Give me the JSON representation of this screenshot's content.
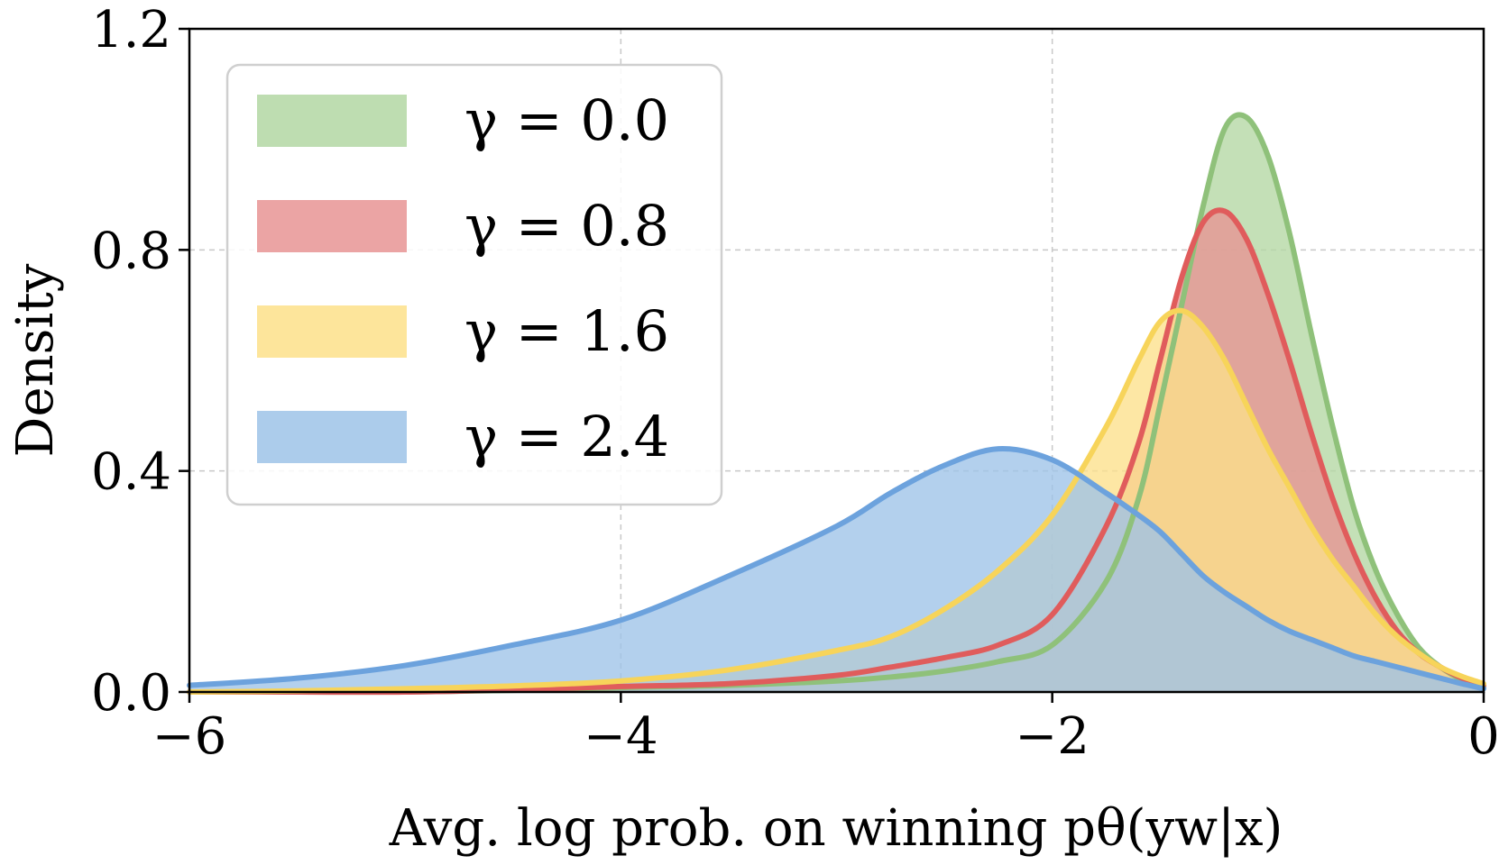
{
  "chart_data": {
    "type": "area",
    "title": "",
    "xlabel": "Avg. log prob. on winning pθ(yw|x)",
    "ylabel": "Density",
    "xlim": [
      -6,
      0
    ],
    "ylim": [
      0,
      1.2
    ],
    "xticks": [
      -6,
      -4,
      -2,
      0
    ],
    "xtick_labels": [
      "−6",
      "−4",
      "−2",
      "0"
    ],
    "yticks": [
      0.0,
      0.4,
      0.8,
      1.2
    ],
    "ytick_labels": [
      "0.0",
      "0.4",
      "0.8",
      "1.2"
    ],
    "grid": true,
    "legend_position": "top-left",
    "x": [
      -6.0,
      -5.5,
      -5.0,
      -4.5,
      -4.0,
      -3.5,
      -3.0,
      -2.75,
      -2.5,
      -2.25,
      -2.0,
      -1.75,
      -1.6,
      -1.5,
      -1.4,
      -1.3,
      -1.2,
      -1.1,
      -1.0,
      -0.9,
      -0.8,
      -0.7,
      -0.6,
      -0.5,
      -0.4,
      -0.3,
      -0.2,
      -0.1,
      0.0
    ],
    "series": [
      {
        "name": "γ = 0.0",
        "line_color": "#8fc17a",
        "fill_color": "#b3d7a3",
        "values": [
          0.0,
          0.0,
          0.0,
          0.003,
          0.008,
          0.012,
          0.02,
          0.027,
          0.038,
          0.055,
          0.085,
          0.2,
          0.35,
          0.52,
          0.7,
          0.88,
          1.02,
          1.04,
          0.97,
          0.83,
          0.65,
          0.48,
          0.33,
          0.22,
          0.14,
          0.08,
          0.045,
          0.022,
          0.008
        ]
      },
      {
        "name": "γ = 0.8",
        "line_color": "#e05c5c",
        "fill_color": "#e89494",
        "values": [
          0.0,
          0.0,
          0.0,
          0.004,
          0.01,
          0.015,
          0.03,
          0.045,
          0.062,
          0.085,
          0.14,
          0.3,
          0.45,
          0.6,
          0.75,
          0.85,
          0.87,
          0.82,
          0.72,
          0.6,
          0.47,
          0.35,
          0.25,
          0.17,
          0.11,
          0.07,
          0.045,
          0.025,
          0.012
        ]
      },
      {
        "name": "γ = 1.6",
        "line_color": "#f7d45a",
        "fill_color": "#fde08a",
        "values": [
          0.0,
          0.002,
          0.006,
          0.011,
          0.02,
          0.04,
          0.075,
          0.1,
          0.15,
          0.22,
          0.32,
          0.48,
          0.6,
          0.67,
          0.69,
          0.66,
          0.6,
          0.52,
          0.44,
          0.37,
          0.3,
          0.24,
          0.19,
          0.14,
          0.1,
          0.07,
          0.045,
          0.028,
          0.015
        ]
      },
      {
        "name": "γ = 2.4",
        "line_color": "#6ca2dd",
        "fill_color": "#9ec3e8",
        "values": [
          0.012,
          0.025,
          0.048,
          0.085,
          0.13,
          0.21,
          0.3,
          0.36,
          0.41,
          0.44,
          0.42,
          0.36,
          0.32,
          0.29,
          0.25,
          0.21,
          0.18,
          0.155,
          0.13,
          0.11,
          0.095,
          0.08,
          0.065,
          0.055,
          0.045,
          0.035,
          0.025,
          0.015,
          0.006
        ]
      }
    ]
  }
}
